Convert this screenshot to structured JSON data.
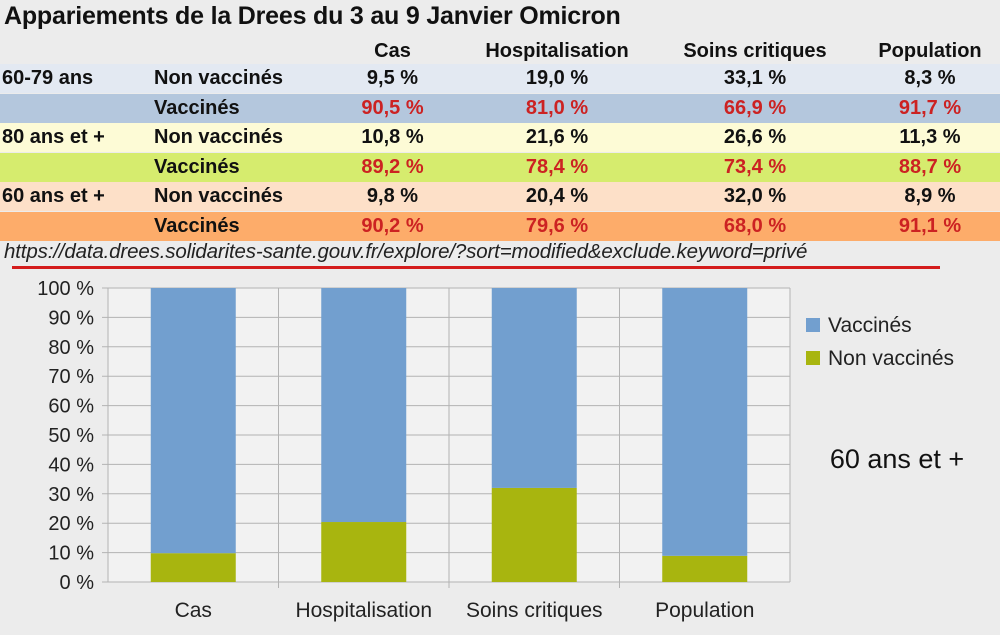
{
  "title": "Appariements de la Drees du 3 au 9 Janvier Omicron",
  "table": {
    "headers": [
      "Cas",
      "Hospitalisation",
      "Soins critiques",
      "Population"
    ],
    "groups": [
      {
        "name": "60-79 ans",
        "rows": [
          {
            "label": "Non vaccinés",
            "values": [
              "9,5 %",
              "19,0 %",
              "33,1 %",
              "8,3 %"
            ]
          },
          {
            "label": "Vaccinés",
            "values": [
              "90,5 %",
              "81,0 %",
              "66,9 %",
              "91,7 %"
            ]
          }
        ]
      },
      {
        "name": "80 ans et +",
        "rows": [
          {
            "label": "Non vaccinés",
            "values": [
              "10,8 %",
              "21,6 %",
              "26,6 %",
              "11,3 %"
            ]
          },
          {
            "label": "Vaccinés",
            "values": [
              "89,2 %",
              "78,4 %",
              "73,4 %",
              "88,7 %"
            ]
          }
        ]
      },
      {
        "name": "60 ans et +",
        "rows": [
          {
            "label": "Non vaccinés",
            "values": [
              "9,8 %",
              "20,4 %",
              "32,0 %",
              "8,9 %"
            ]
          },
          {
            "label": "Vaccinés",
            "values": [
              "90,2 %",
              "79,6 %",
              "68,0 %",
              "91,1 %"
            ]
          }
        ]
      }
    ],
    "colors": {
      "g1_nonvax": "#e3e9f2",
      "g1_vax": "#b4c7dd",
      "g2_nonvax": "#fdfbd6",
      "g2_vax": "#d6ec6e",
      "g3_nonvax": "#fde0c8",
      "g3_vax": "#fdac6a",
      "red_text": "#cc2222"
    }
  },
  "source_url": "https://data.drees.solidarites-sante.gouv.fr/explore/?sort=modified&exclude.keyword=privé",
  "chart_data": {
    "type": "bar",
    "stacked": true,
    "title": "60 ans et +",
    "categories": [
      "Cas",
      "Hospitalisation",
      "Soins critiques",
      "Population"
    ],
    "series": [
      {
        "name": "Non vaccinés",
        "values": [
          9.8,
          20.4,
          32.0,
          8.9
        ],
        "color": "#a8b50f"
      },
      {
        "name": "Vaccinés",
        "values": [
          90.2,
          79.6,
          68.0,
          91.1
        ],
        "color": "#729fcf"
      }
    ],
    "ylim": [
      0,
      100
    ],
    "yticks": [
      "0 %",
      "10 %",
      "20 %",
      "30 %",
      "40 %",
      "50 %",
      "60 %",
      "70 %",
      "80 %",
      "90 %",
      "100 %"
    ],
    "legend": [
      "Vaccinés",
      "Non vaccinés"
    ],
    "legend_position": "right",
    "grid": true,
    "plot_background": "#f2f2f2"
  }
}
